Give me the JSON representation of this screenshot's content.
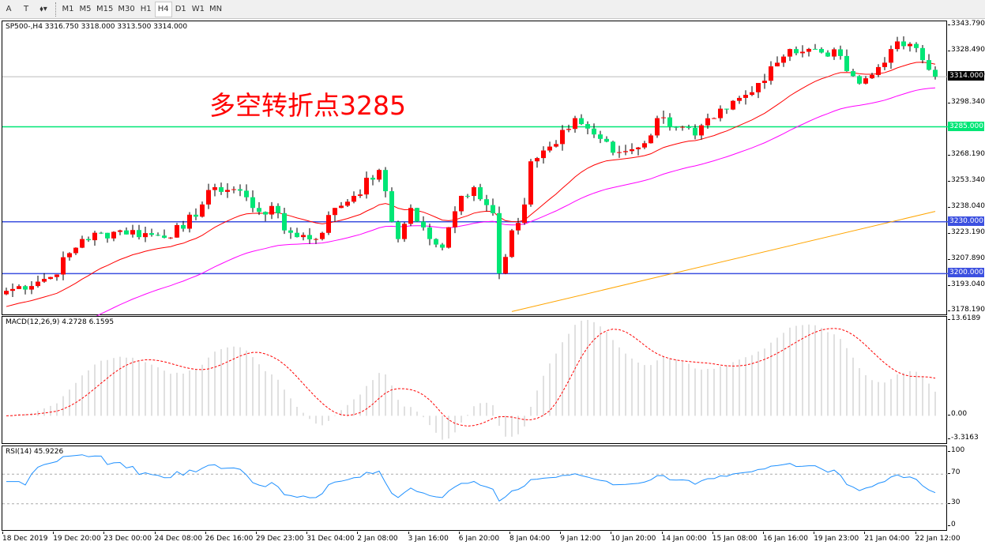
{
  "toolbar": {
    "items": [
      {
        "label": "A",
        "icon": "text-icon"
      },
      {
        "label": "T",
        "icon": "text-label-icon"
      },
      {
        "label": "⬧▾",
        "icon": "arrows-dropdown-icon"
      }
    ],
    "timeframes": [
      "M1",
      "M5",
      "M15",
      "M30",
      "H1",
      "H4",
      "D1",
      "W1",
      "MN"
    ],
    "active_timeframe": "H4"
  },
  "chart": {
    "header": "SP500-,H4  3316.750 3318.000 3313.500 3314.000",
    "annotation": "多空转折点3285",
    "price_ticks": [
      "3343.790",
      "3328.490",
      "3314.000",
      "3298.340",
      "3268.190",
      "3253.340",
      "3238.040",
      "3223.190",
      "3207.890",
      "3193.040",
      "3178.190"
    ],
    "price_min": 3178.19,
    "price_max": 3343.79,
    "current_price": {
      "label": "3314.000",
      "value": 3314
    },
    "hlines": [
      {
        "label": "3285.000",
        "value": 3285,
        "color": "#00e676"
      },
      {
        "label": "3230.000",
        "value": 3230,
        "color": "#3c50e0"
      },
      {
        "label": "3200.000",
        "value": 3200,
        "color": "#3c50e0"
      }
    ],
    "colors": {
      "bull": "#ff0000",
      "bear": "#00e676",
      "ma_fast": "#ff0000",
      "ma_mid": "#ff00ff",
      "ma_slow": "#ffa500"
    },
    "close_path": [
      [
        0,
        3190
      ],
      [
        7,
        3198
      ],
      [
        12,
        3220
      ],
      [
        18,
        3225
      ],
      [
        24,
        3222
      ],
      [
        28,
        3226
      ],
      [
        33,
        3250
      ],
      [
        37,
        3248
      ],
      [
        39,
        3238
      ],
      [
        43,
        3235
      ],
      [
        44,
        3225
      ],
      [
        49,
        3220
      ],
      [
        52,
        3238
      ],
      [
        55,
        3245
      ],
      [
        59,
        3260
      ],
      [
        61,
        3230
      ],
      [
        62,
        3220
      ],
      [
        64,
        3238
      ],
      [
        67,
        3220
      ],
      [
        69,
        3215
      ],
      [
        72,
        3245
      ],
      [
        74,
        3250
      ],
      [
        77,
        3235
      ],
      [
        78,
        3200
      ],
      [
        80,
        3225
      ],
      [
        82,
        3240
      ],
      [
        83,
        3265
      ],
      [
        87,
        3275
      ],
      [
        90,
        3290
      ],
      [
        94,
        3278
      ],
      [
        96,
        3270
      ],
      [
        99,
        3272
      ],
      [
        102,
        3280
      ],
      [
        103,
        3290
      ],
      [
        107,
        3285
      ],
      [
        109,
        3280
      ],
      [
        112,
        3290
      ],
      [
        114,
        3295
      ],
      [
        118,
        3305
      ],
      [
        121,
        3320
      ],
      [
        124,
        3330
      ],
      [
        129,
        3328
      ],
      [
        132,
        3326
      ],
      [
        135,
        3310
      ],
      [
        137,
        3315
      ],
      [
        140,
        3330
      ],
      [
        143,
        3333
      ],
      [
        146,
        3318
      ],
      [
        147,
        3314
      ]
    ],
    "ma_slow_range": [
      3178,
      3236
    ]
  },
  "macd": {
    "label": "MACD(12,26,9) 4.2728 6.1595",
    "ticks": [
      "13.6189",
      "0.00",
      "-3.3163"
    ],
    "max": 13.6189,
    "min": -3.3163
  },
  "rsi": {
    "label": "RSI(14) 45.9226",
    "ticks": [
      "100",
      "70",
      "30",
      "0"
    ],
    "levels": [
      70,
      30
    ]
  },
  "time_labels": [
    "18 Dec 2019",
    "19 Dec 20:00",
    "23 Dec 00:00",
    "24 Dec 08:00",
    "26 Dec 16:00",
    "29 Dec 23:00",
    "31 Dec 04:00",
    "2 Jan 08:00",
    "3 Jan 16:00",
    "6 Jan 20:00",
    "8 Jan 04:00",
    "9 Jan 12:00",
    "10 Jan 20:00",
    "14 Jan 00:00",
    "15 Jan 08:00",
    "16 Jan 16:00",
    "19 Jan 23:00",
    "21 Jan 04:00",
    "22 Jan 12:00"
  ]
}
